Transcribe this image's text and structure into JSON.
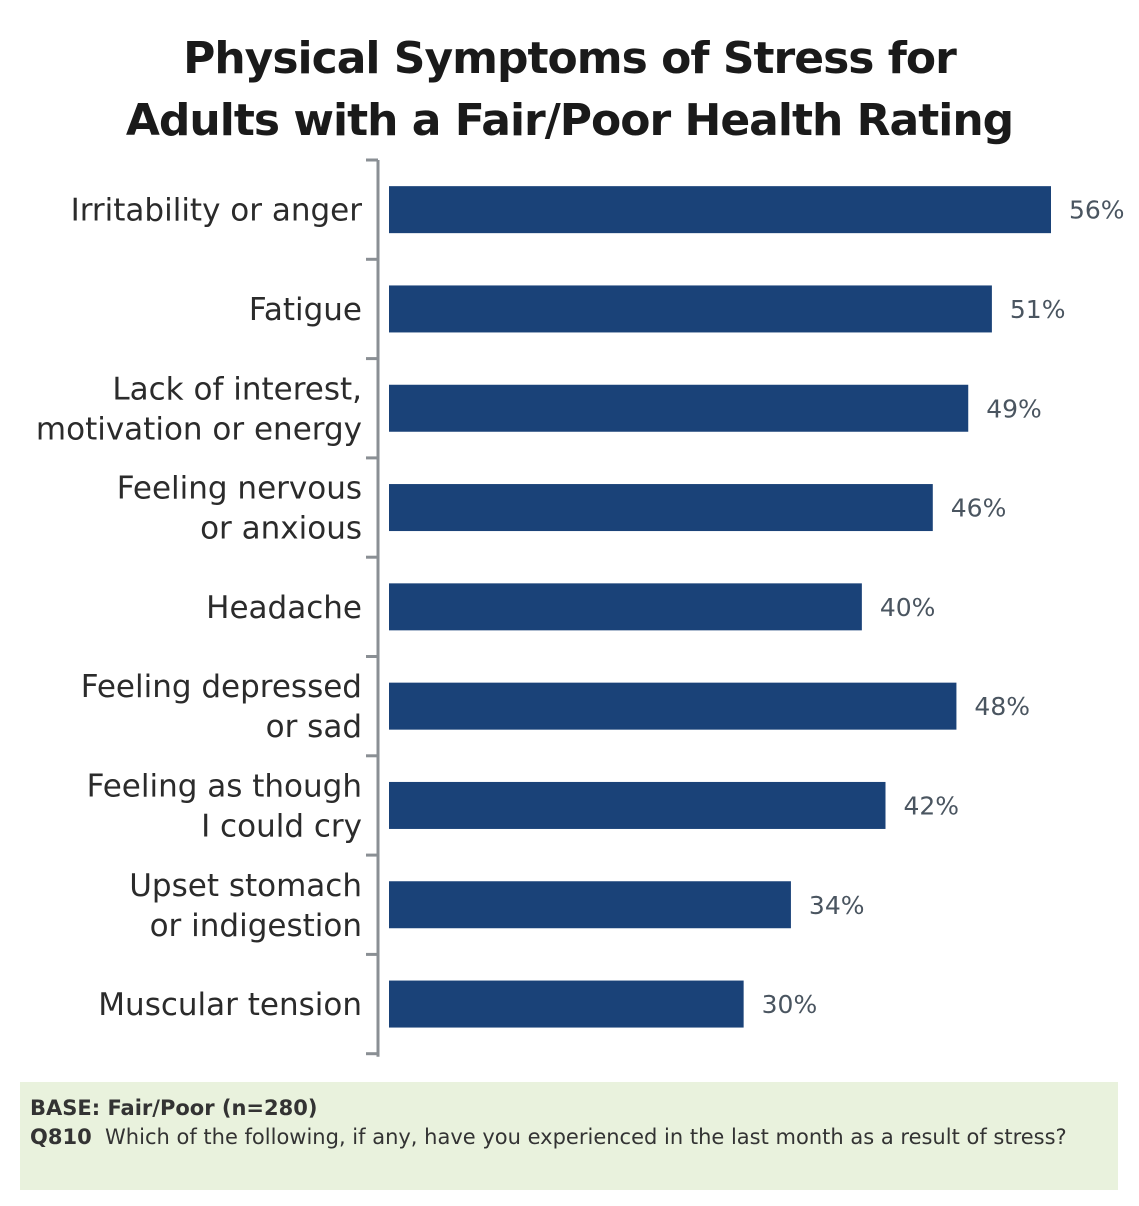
{
  "chart_data": {
    "type": "bar",
    "orientation": "horizontal",
    "title": "Physical Symptoms of Stress for Adults with a Fair/Poor Health Rating",
    "title_lines": [
      "Physical Symptoms of Stress for",
      "Adults with a Fair/Poor Health Rating"
    ],
    "categories": [
      [
        "Irritability or anger"
      ],
      [
        "Fatigue"
      ],
      [
        "Lack of interest,",
        "motivation or energy"
      ],
      [
        "Feeling nervous",
        "or anxious"
      ],
      [
        "Headache"
      ],
      [
        "Feeling depressed",
        "or sad"
      ],
      [
        "Feeling as though",
        "I could cry"
      ],
      [
        "Upset stomach",
        "or indigestion"
      ],
      [
        "Muscular tension"
      ]
    ],
    "values": [
      56,
      51,
      49,
      46,
      40,
      48,
      42,
      34,
      30
    ],
    "value_labels": [
      "56%",
      "51%",
      "49%",
      "46%",
      "40%",
      "48%",
      "42%",
      "34%",
      "30%"
    ],
    "unit": "%",
    "grid": false,
    "legend": "none",
    "bar_color": "#1a4278",
    "axis_color": "#8a8f94"
  },
  "footnote": {
    "base": "BASE: Fair/Poor (n=280)",
    "question_code": "Q810",
    "question_text": "Which of the following, if any, have you experienced in the last month as a result of stress?"
  }
}
